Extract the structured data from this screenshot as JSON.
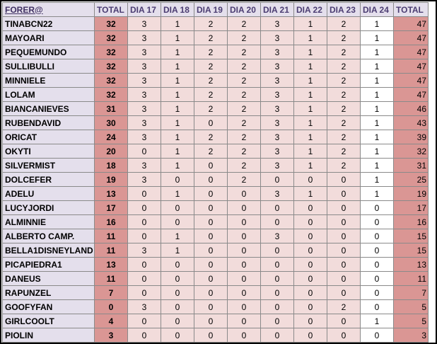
{
  "headers": [
    "FORER@",
    "TOTAL",
    "DIA 17",
    "DIA 18",
    "DIA 19",
    "DIA 20",
    "DIA 21",
    "DIA 22",
    "DIA 23",
    "DIA 24",
    "TOTAL"
  ],
  "rows": [
    {
      "name": "TINABCN22",
      "total": "32",
      "days": [
        "3",
        "1",
        "2",
        "2",
        "3",
        "1",
        "2",
        "1"
      ],
      "final": "47"
    },
    {
      "name": "MAYOARI",
      "total": "32",
      "days": [
        "3",
        "1",
        "2",
        "2",
        "3",
        "1",
        "2",
        "1"
      ],
      "final": "47"
    },
    {
      "name": "PEQUEMUNDO",
      "total": "32",
      "days": [
        "3",
        "1",
        "2",
        "2",
        "3",
        "1",
        "2",
        "1"
      ],
      "final": "47"
    },
    {
      "name": "SULLIBULLI",
      "total": "32",
      "days": [
        "3",
        "1",
        "2",
        "2",
        "3",
        "1",
        "2",
        "1"
      ],
      "final": "47"
    },
    {
      "name": "MINNIELE",
      "total": "32",
      "days": [
        "3",
        "1",
        "2",
        "2",
        "3",
        "1",
        "2",
        "1"
      ],
      "final": "47"
    },
    {
      "name": "LOLAM",
      "total": "32",
      "days": [
        "3",
        "1",
        "2",
        "2",
        "3",
        "1",
        "2",
        "1"
      ],
      "final": "47"
    },
    {
      "name": "BIANCANIEVES",
      "total": "31",
      "days": [
        "3",
        "1",
        "2",
        "2",
        "3",
        "1",
        "2",
        "1"
      ],
      "final": "46"
    },
    {
      "name": "RUBENDAVID",
      "total": "30",
      "days": [
        "3",
        "1",
        "0",
        "2",
        "3",
        "1",
        "2",
        "1"
      ],
      "final": "43"
    },
    {
      "name": "ORICAT",
      "total": "24",
      "days": [
        "3",
        "1",
        "2",
        "2",
        "3",
        "1",
        "2",
        "1"
      ],
      "final": "39"
    },
    {
      "name": "OKYTI",
      "total": "20",
      "days": [
        "0",
        "1",
        "2",
        "2",
        "3",
        "1",
        "2",
        "1"
      ],
      "final": "32"
    },
    {
      "name": "SILVERMIST",
      "total": "18",
      "days": [
        "3",
        "1",
        "0",
        "2",
        "3",
        "1",
        "2",
        "1"
      ],
      "final": "31"
    },
    {
      "name": "DOLCEFER",
      "total": "19",
      "days": [
        "3",
        "0",
        "0",
        "2",
        "0",
        "0",
        "0",
        "1"
      ],
      "final": "25"
    },
    {
      "name": "ADELU",
      "total": "13",
      "days": [
        "0",
        "1",
        "0",
        "0",
        "3",
        "1",
        "0",
        "1"
      ],
      "final": "19"
    },
    {
      "name": "LUCYJORDI",
      "total": "17",
      "days": [
        "0",
        "0",
        "0",
        "0",
        "0",
        "0",
        "0",
        "0"
      ],
      "final": "17"
    },
    {
      "name": "ALMINNIE",
      "total": "16",
      "days": [
        "0",
        "0",
        "0",
        "0",
        "0",
        "0",
        "0",
        "0"
      ],
      "final": "16"
    },
    {
      "name": "ALBERTO CAMP.",
      "total": "11",
      "days": [
        "0",
        "1",
        "0",
        "0",
        "3",
        "0",
        "0",
        "0"
      ],
      "final": "15"
    },
    {
      "name": "BELLA1DISNEYLAND",
      "total": "11",
      "days": [
        "3",
        "1",
        "0",
        "0",
        "0",
        "0",
        "0",
        "0"
      ],
      "final": "15"
    },
    {
      "name": "PICAPIEDRA1",
      "total": "13",
      "days": [
        "0",
        "0",
        "0",
        "0",
        "0",
        "0",
        "0",
        "0"
      ],
      "final": "13"
    },
    {
      "name": "DANEUS",
      "total": "11",
      "days": [
        "0",
        "0",
        "0",
        "0",
        "0",
        "0",
        "0",
        "0"
      ],
      "final": "11"
    },
    {
      "name": "RAPUNZEL",
      "total": "7",
      "days": [
        "0",
        "0",
        "0",
        "0",
        "0",
        "0",
        "0",
        "0"
      ],
      "final": "7"
    },
    {
      "name": "GOOFYFAN",
      "total": "0",
      "days": [
        "3",
        "0",
        "0",
        "0",
        "0",
        "0",
        "2",
        "0"
      ],
      "final": "5"
    },
    {
      "name": "GIRLCOOLT",
      "total": "4",
      "days": [
        "0",
        "0",
        "0",
        "0",
        "0",
        "0",
        "0",
        "1"
      ],
      "final": "5"
    },
    {
      "name": "PIOLIN",
      "total": "3",
      "days": [
        "0",
        "0",
        "0",
        "0",
        "0",
        "0",
        "0",
        "0"
      ],
      "final": "3"
    }
  ],
  "colors": {
    "header_bg": "#e4dfec",
    "name_bg": "#e4dfec",
    "total_bg": "#da9694",
    "day_bg": "#f2dcdb",
    "day24_bg": "#ffffff"
  }
}
